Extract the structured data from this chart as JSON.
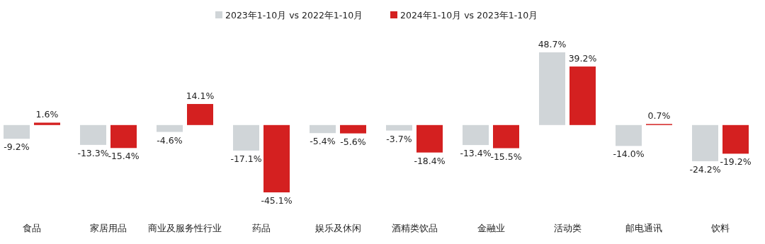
{
  "chart_data": {
    "type": "bar",
    "legend": "top",
    "categories": [
      "食品",
      "家居用品",
      "商业及服务性行业",
      "药品",
      "娱乐及休闲",
      "酒精类饮品",
      "金融业",
      "活动类",
      "邮电通讯",
      "饮料"
    ],
    "series": [
      {
        "name": "2023年1-10月 vs 2022年1-10月",
        "color": "#d0d5d8",
        "values": [
          -9.2,
          -13.3,
          -4.6,
          -17.1,
          -5.4,
          -3.7,
          -13.4,
          48.7,
          -14.0,
          -24.2
        ],
        "value_labels": [
          "-9.2%",
          "-13.3%",
          "-4.6%",
          "-17.1%",
          "-5.4%",
          "-3.7%",
          "-13.4%",
          "48.7%",
          "-14.0%",
          "-24.2%"
        ]
      },
      {
        "name": "2024年1-10月 vs 2023年1-10月",
        "color": "#d42020",
        "values": [
          1.6,
          -15.4,
          14.1,
          -45.1,
          -5.6,
          -18.4,
          -15.5,
          39.2,
          0.7,
          -19.2
        ],
        "value_labels": [
          "1.6%",
          "-15.4%",
          "14.1%",
          "-45.1%",
          "-5.6%",
          "-18.4%",
          "-15.5%",
          "39.2%",
          "0.7%",
          "-19.2%"
        ]
      }
    ]
  }
}
